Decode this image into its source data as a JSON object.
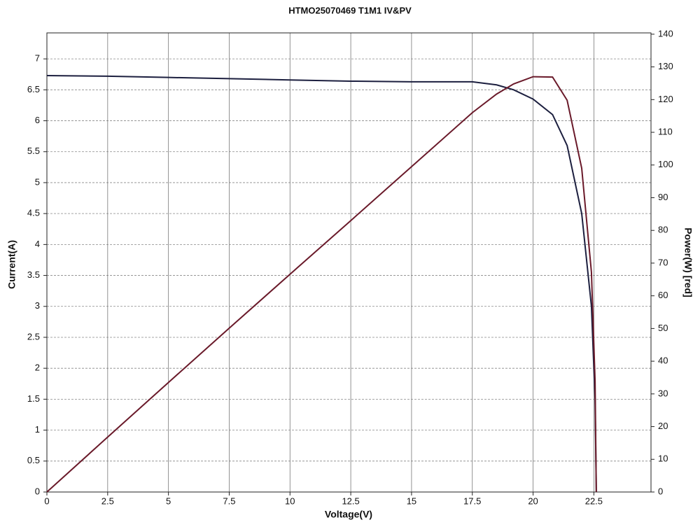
{
  "chart_data": {
    "type": "line",
    "title": "HTMO25070469 T1M1 IV&PV",
    "x_label": "Voltage(V)",
    "y_label": "Current(A)",
    "y2_label": "Power(W) [red]",
    "x": [
      0,
      2.5,
      5,
      7.5,
      10,
      12.5,
      15,
      17.5,
      18.5,
      19.2,
      20,
      20.8,
      21.4,
      22,
      22.4,
      22.55,
      22.6
    ],
    "series": [
      {
        "color": "#1c1f3f",
        "values": [
          6.73,
          6.72,
          6.7,
          6.68,
          6.66,
          6.64,
          6.63,
          6.63,
          6.58,
          6.5,
          6.35,
          6.1,
          5.6,
          4.5,
          3.0,
          1.5,
          0
        ]
      },
      {
        "color": "#6a1a2a",
        "axis": "y2",
        "values": [
          0,
          16.8,
          33.5,
          50.1,
          66.6,
          83.0,
          99.5,
          116.0,
          121.7,
          124.8,
          127.0,
          126.9,
          119.8,
          99.0,
          67.2,
          33.8,
          0
        ]
      }
    ],
    "xlim": [
      0,
      24.85
    ],
    "xticks": [
      0,
      2.5,
      5,
      7.5,
      10,
      12.5,
      15,
      17.5,
      20,
      22.5
    ],
    "ylim": [
      0,
      7.42
    ],
    "yticks": [
      0,
      0.5,
      1,
      1.5,
      2,
      2.5,
      3,
      3.5,
      4,
      4.5,
      5,
      5.5,
      6,
      6.5,
      7
    ],
    "y2lim": [
      0,
      140.4
    ],
    "y2ticks": [
      0,
      10,
      20,
      30,
      40,
      50,
      60,
      70,
      80,
      90,
      100,
      110,
      120,
      130,
      140
    ],
    "grid": true
  }
}
